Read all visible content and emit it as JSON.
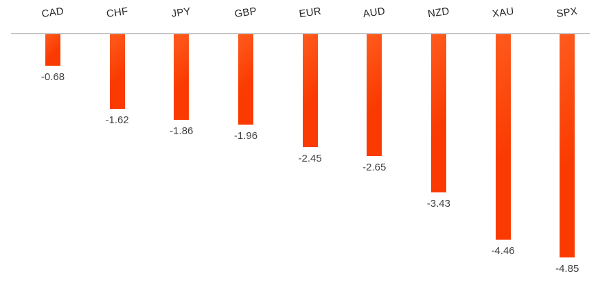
{
  "chart_data": {
    "type": "bar",
    "title": "",
    "xlabel": "",
    "ylabel": "",
    "categories": [
      "CAD",
      "CHF",
      "JPY",
      "GBP",
      "EUR",
      "AUD",
      "NZD",
      "XAU",
      "SPX"
    ],
    "values": [
      -0.68,
      -1.62,
      -1.86,
      -1.96,
      -2.45,
      -2.65,
      -3.43,
      -4.46,
      -4.85
    ],
    "value_labels": [
      "-0.68",
      "-1.62",
      "-1.86",
      "-1.96",
      "-2.45",
      "-2.65",
      "-3.43",
      "-4.46",
      "-4.85"
    ],
    "ylim": [
      -5.1,
      0
    ],
    "grid": false,
    "legend": "none",
    "bar_direction": "negative-down-from-top-axis",
    "colors": {
      "bar_main": "#fa3a00",
      "bar_light": "#ff5b1e",
      "axis_line": "#c6c6c6",
      "category_label": "#262626",
      "value_label": "#404040",
      "background": "#ffffff"
    }
  }
}
